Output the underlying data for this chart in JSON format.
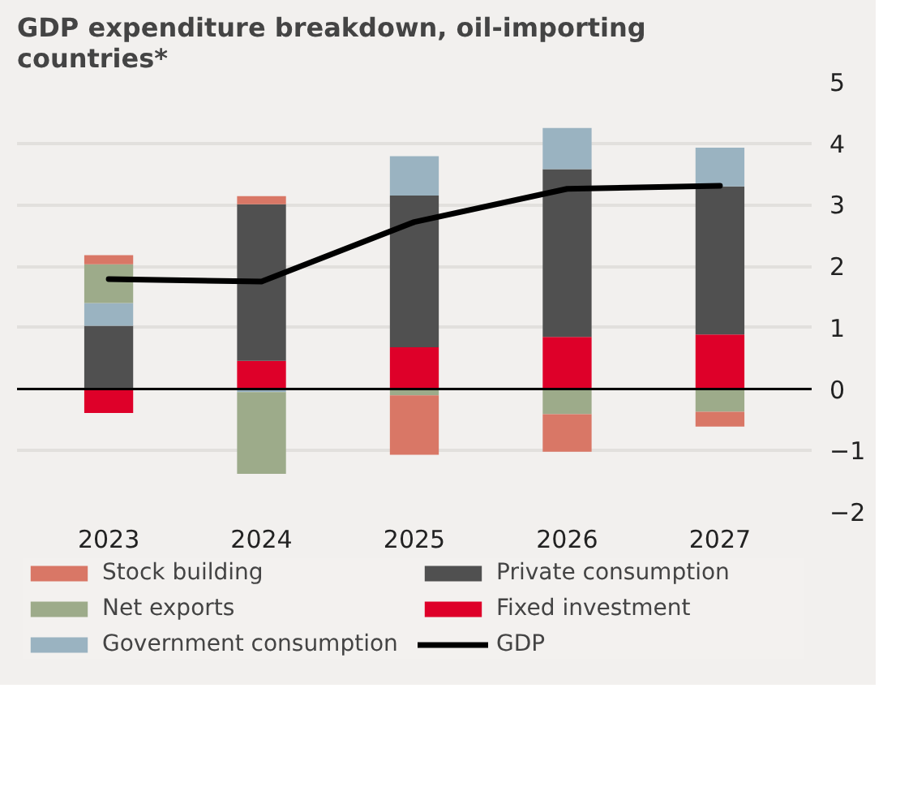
{
  "chart_data": {
    "type": "bar",
    "title": "GDP expenditure breakdown, oil-importing countries*",
    "categories": [
      "2023",
      "2024",
      "2025",
      "2026",
      "2027"
    ],
    "stacked": true,
    "series": [
      {
        "name": "Fixed investment",
        "color": "#de0029",
        "values": [
          -0.39,
          0.46,
          0.68,
          0.85,
          0.89
        ]
      },
      {
        "name": "Private consumption",
        "color": "#505050",
        "values": [
          1.03,
          2.55,
          2.47,
          2.73,
          2.41
        ]
      },
      {
        "name": "Government consumption",
        "color": "#9ab3c1",
        "values": [
          0.37,
          -0.05,
          0.64,
          0.67,
          0.63
        ]
      },
      {
        "name": "Net exports",
        "color": "#9dab8a",
        "values": [
          0.63,
          -1.33,
          -0.1,
          -0.41,
          -0.37
        ]
      },
      {
        "name": "Stock building",
        "color": "#d97766",
        "values": [
          0.15,
          0.13,
          -0.97,
          -0.61,
          -0.24
        ]
      },
      {
        "name": "GDP",
        "type": "line",
        "color": "#000000",
        "values": [
          1.79,
          1.75,
          2.72,
          3.26,
          3.31
        ]
      }
    ],
    "ylim": [
      -2,
      5
    ],
    "yticks": [
      -2,
      -1,
      0,
      1,
      2,
      3,
      4,
      5
    ],
    "ref_lines": [
      {
        "axis": "y",
        "value": 0,
        "color": "#000000"
      }
    ],
    "grid": "y",
    "legend": "bottom",
    "line_style": "solid",
    "marker": "none"
  }
}
